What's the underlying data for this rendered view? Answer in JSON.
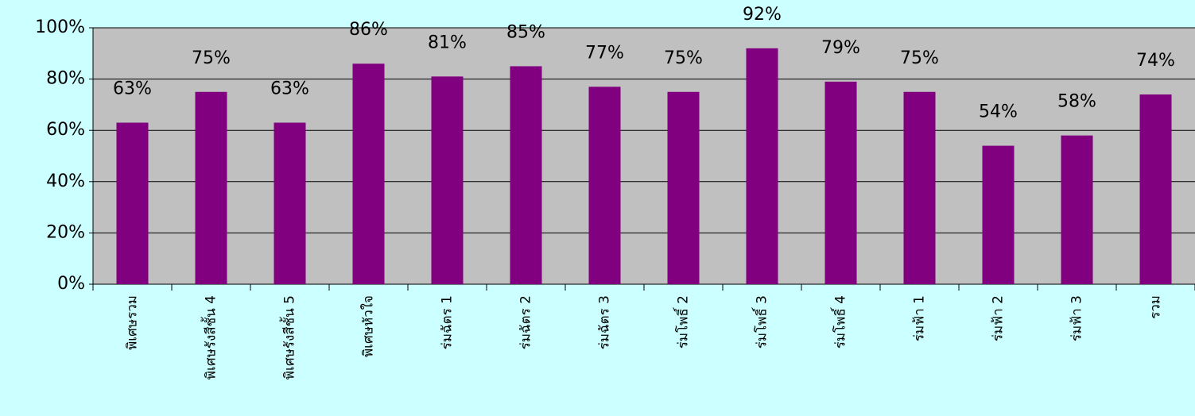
{
  "chart_data": {
    "type": "bar",
    "categories": [
      "พิเศษรวม",
      "พิเศษรังสีชั้น 4",
      "พิเศษรังสีชั้น 5",
      "พิเศษหัวใจ",
      "ร่มฉัตร 1",
      "ร่มฉัตร 2",
      "ร่มฉัตร 3",
      "ร่มโพธิ์ 2",
      "ร่มโพธิ์ 3",
      "ร่มโพธิ์ 4",
      "ร่มฟ้า 1",
      "ร่มฟ้า 2",
      "ร่มฟ้า 3",
      "รวม"
    ],
    "values": [
      63,
      75,
      63,
      86,
      81,
      85,
      77,
      75,
      92,
      79,
      75,
      54,
      58,
      74
    ],
    "value_labels": [
      "63%",
      "75%",
      "63%",
      "86%",
      "81%",
      "85%",
      "77%",
      "75%",
      "92%",
      "79%",
      "75%",
      "54%",
      "58%",
      "74%"
    ],
    "color": "#800080",
    "ylim": [
      0,
      100
    ],
    "yticks": [
      {
        "value": 0,
        "label": "0%"
      },
      {
        "value": 20,
        "label": "20%"
      },
      {
        "value": 40,
        "label": "40%"
      },
      {
        "value": 60,
        "label": "60%"
      },
      {
        "value": 80,
        "label": "80%"
      },
      {
        "value": 100,
        "label": "100%"
      }
    ],
    "grid": true
  }
}
